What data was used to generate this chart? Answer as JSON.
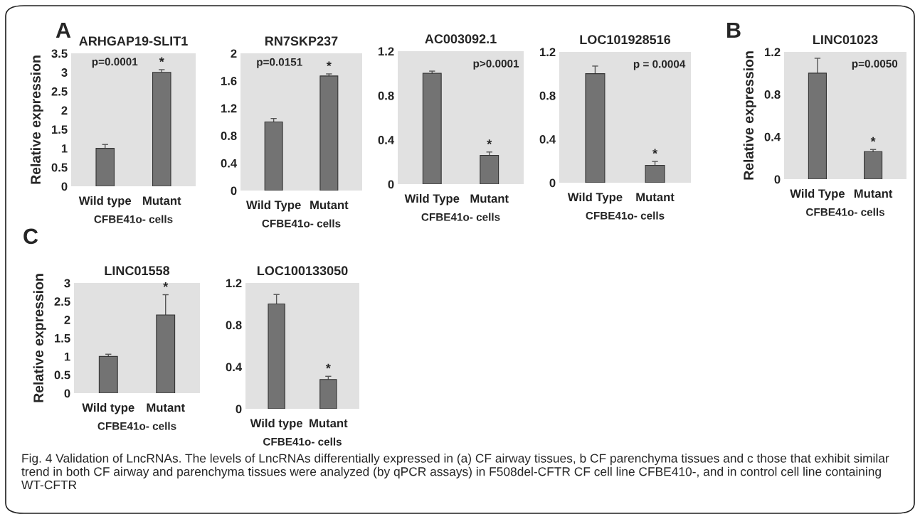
{
  "chart_data": [
    {
      "type": "bar",
      "title": "ARHGAP19-SLIT1",
      "ylabel": "Relative expression",
      "xlabel": "CFBE41o- cells",
      "categories": [
        "Wild type",
        "Mutant"
      ],
      "values": [
        1.0,
        3.0
      ],
      "errors": [
        0.1,
        0.07
      ],
      "color": "#737373",
      "ylim": [
        0,
        3.5
      ],
      "yticks": [
        0,
        0.5,
        1,
        1.5,
        2,
        2.5,
        3,
        3.5
      ],
      "grid": false,
      "annotations": [
        "A",
        "p=0.0001",
        "Fig. 4 Validation of LncRNAs. The levels of LncRNAs differentially expressed in (a) CF airway tissues, b CF parenchyma tissues and c those that exhibit similar trend in both CF airway and parenchyma tissues were analyzed (by qPCR assays) in F508del-CFTR CF cell line CFBE410-, and in control cell line containing WT-CFTR",
        {
          "text": "*",
          "x": "Mutant",
          "y": 3.07
        }
      ]
    },
    {
      "type": "bar",
      "title": "RN7SKP237",
      "xlabel": "CFBE41o- cells",
      "categories": [
        "Wild Type",
        "Mutant"
      ],
      "values": [
        1.0,
        1.67
      ],
      "errors": [
        0.05,
        0.03
      ],
      "color": "#737373",
      "ylim": [
        0,
        2
      ],
      "yticks": [
        0,
        0.4,
        0.8,
        1.2,
        1.6,
        2
      ],
      "grid": false,
      "annotations": [
        "p=0.0151",
        {
          "text": "*",
          "x": "Mutant",
          "y": 1.7
        }
      ]
    },
    {
      "type": "bar",
      "title": "AC003092.1",
      "xlabel": "CFBE41o- cells",
      "categories": [
        "Wild Type",
        "Mutant"
      ],
      "values": [
        1.0,
        0.26
      ],
      "errors": [
        0.02,
        0.03
      ],
      "color": "#737373",
      "ylim": [
        0,
        1.2
      ],
      "yticks": [
        0,
        0.4,
        0.8,
        1.2
      ],
      "grid": false,
      "annotations": [
        "p>0.0001",
        {
          "text": "*",
          "x": "Mutant",
          "y": 0.29
        }
      ]
    },
    {
      "type": "bar",
      "title": "LOC101928516",
      "xlabel": "CFBE41o- cells",
      "categories": [
        "Wild Type",
        "Mutant"
      ],
      "values": [
        1.0,
        0.16
      ],
      "errors": [
        0.07,
        0.035
      ],
      "color": "#737373",
      "ylim": [
        0,
        1.2
      ],
      "yticks": [
        0,
        0.4,
        0.8,
        1.2
      ],
      "grid": false,
      "annotations": [
        "p = 0.0004",
        {
          "text": "*",
          "x": "Mutant",
          "y": 0.195
        }
      ]
    },
    {
      "type": "bar",
      "title": "LINC01023",
      "ylabel": "Relative expression",
      "xlabel": "CFBE41o- cells",
      "categories": [
        "Wild Type",
        "Mutant"
      ],
      "values": [
        1.0,
        0.26
      ],
      "errors": [
        0.14,
        0.02
      ],
      "color": "#737373",
      "ylim": [
        0,
        1.2
      ],
      "yticks": [
        0,
        0.4,
        0.8,
        1.2
      ],
      "grid": false,
      "annotations": [
        "B",
        "p=0.0050",
        {
          "text": "*",
          "x": "Mutant",
          "y": 0.28
        }
      ]
    },
    {
      "type": "bar",
      "title": "LINC01558",
      "ylabel": "Relative expression",
      "xlabel": "CFBE41o- cells",
      "categories": [
        "Wild type",
        "Mutant"
      ],
      "values": [
        1.0,
        2.13
      ],
      "errors": [
        0.06,
        0.55
      ],
      "color": "#737373",
      "ylim": [
        0,
        3
      ],
      "yticks": [
        0,
        0.5,
        1,
        1.5,
        2,
        2.5,
        3
      ],
      "grid": false,
      "annotations": [
        "C",
        {
          "text": "*",
          "x": "Mutant",
          "y": 2.68
        }
      ]
    },
    {
      "type": "bar",
      "title": "LOC100133050",
      "xlabel": "CFBE41o- cells",
      "categories": [
        "Wild type",
        "Mutant"
      ],
      "values": [
        1.0,
        0.28
      ],
      "errors": [
        0.09,
        0.03
      ],
      "color": "#737373",
      "ylim": [
        0,
        1.2
      ],
      "yticks": [
        0,
        0.4,
        0.8,
        1.2
      ],
      "grid": false,
      "annotations": [
        {
          "text": "*",
          "x": "Mutant",
          "y": 0.31
        }
      ]
    }
  ]
}
